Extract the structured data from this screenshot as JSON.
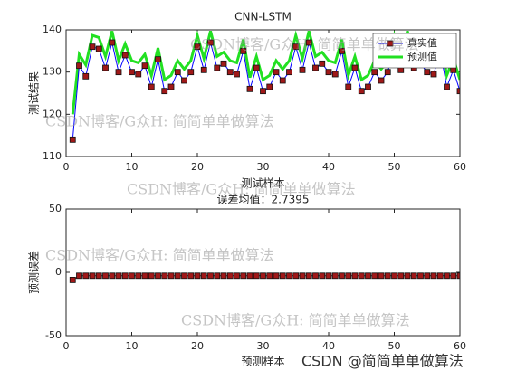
{
  "chart_data": [
    {
      "type": "line",
      "title": "CNN-LSTM",
      "xlabel": "测试样本",
      "ylabel": "测试结果",
      "x": [
        1,
        2,
        3,
        4,
        5,
        6,
        7,
        8,
        9,
        10,
        11,
        12,
        13,
        14,
        15,
        16,
        17,
        18,
        19,
        20,
        21,
        22,
        23,
        24,
        25,
        26,
        27,
        28,
        29,
        30,
        31,
        32,
        33,
        34,
        35,
        36,
        37,
        38,
        39,
        40,
        41,
        42,
        43,
        44,
        45,
        46,
        47,
        48,
        49,
        50,
        51,
        52,
        53,
        54,
        55,
        56,
        57,
        58,
        59,
        60
      ],
      "series": [
        {
          "name": "真实值",
          "color": "#0000ff",
          "marker": "square",
          "marker_color": "#a01818",
          "line_width": 1,
          "values": [
            114,
            131.5,
            129,
            136,
            135.5,
            131,
            137,
            130,
            134,
            130,
            129.5,
            131.5,
            126.5,
            133,
            125.5,
            126.5,
            130,
            128,
            130,
            136,
            130.5,
            137,
            131,
            132,
            130,
            129.5,
            135,
            126,
            131,
            125.5,
            126.5,
            130,
            128,
            130,
            136,
            130.5,
            137,
            131,
            132,
            130,
            129.5,
            135,
            126.5,
            131,
            125.5,
            126.5,
            130,
            128,
            130,
            136,
            130.5,
            137,
            131,
            132,
            130,
            129.5,
            135,
            126.5,
            130.5,
            125.5
          ]
        },
        {
          "name": "预测值",
          "color": "#22e022",
          "line_width": 3,
          "values": [
            120,
            134.2,
            131.7,
            138.7,
            138.2,
            133.7,
            139.7,
            132.7,
            136.7,
            132.7,
            132.2,
            134.2,
            129.2,
            135.7,
            128.2,
            129.2,
            132.7,
            130.7,
            132.7,
            138.7,
            133.2,
            139.7,
            133.7,
            134.7,
            132.7,
            132.2,
            137.7,
            128.7,
            133.7,
            128.2,
            129.2,
            132.7,
            130.7,
            132.7,
            138.7,
            133.2,
            139.7,
            133.7,
            134.7,
            132.7,
            132.2,
            137.7,
            129.2,
            133.7,
            128.2,
            129.2,
            132.7,
            130.7,
            132.7,
            138.7,
            133.2,
            139.7,
            133.7,
            134.7,
            132.7,
            132.2,
            137.7,
            129.2,
            133.2,
            128.2
          ]
        }
      ],
      "xlim": [
        0,
        60
      ],
      "xticks": [
        0,
        10,
        20,
        30,
        40,
        50,
        60
      ],
      "ylim": [
        110,
        140
      ],
      "yticks": [
        110,
        120,
        130,
        140
      ],
      "legend": "northeast"
    },
    {
      "type": "line",
      "title": "误差均值：2.7395",
      "xlabel": "预测样本",
      "ylabel": "预测误差",
      "x": [
        1,
        2,
        3,
        4,
        5,
        6,
        7,
        8,
        9,
        10,
        11,
        12,
        13,
        14,
        15,
        16,
        17,
        18,
        19,
        20,
        21,
        22,
        23,
        24,
        25,
        26,
        27,
        28,
        29,
        30,
        31,
        32,
        33,
        34,
        35,
        36,
        37,
        38,
        39,
        40,
        41,
        42,
        43,
        44,
        45,
        46,
        47,
        48,
        49,
        50,
        51,
        52,
        53,
        54,
        55,
        56,
        57,
        58,
        59,
        60
      ],
      "series": [
        {
          "color": "#5a1010",
          "marker": "square",
          "marker_color": "#a01818",
          "line_width": 1,
          "values": [
            -6,
            -2.7,
            -2.7,
            -2.7,
            -2.7,
            -2.7,
            -2.7,
            -2.7,
            -2.7,
            -2.7,
            -2.7,
            -2.7,
            -2.7,
            -2.7,
            -2.7,
            -2.7,
            -2.7,
            -2.7,
            -2.7,
            -2.7,
            -2.7,
            -2.7,
            -2.7,
            -2.7,
            -2.7,
            -2.7,
            -2.7,
            -2.7,
            -2.7,
            -2.7,
            -2.7,
            -2.7,
            -2.7,
            -2.7,
            -2.7,
            -2.7,
            -2.7,
            -2.7,
            -2.7,
            -2.7,
            -2.7,
            -2.7,
            -2.7,
            -2.7,
            -2.7,
            -2.7,
            -2.7,
            -2.7,
            -2.7,
            -2.7,
            -2.7,
            -2.7,
            -2.7,
            -2.7,
            -2.7,
            -2.7,
            -2.7,
            -2.7,
            -2.7,
            -2.7
          ]
        }
      ],
      "xlim": [
        0,
        60
      ],
      "xticks": [
        0,
        10,
        20,
        30,
        40,
        50,
        60
      ],
      "ylim": [
        -50,
        50
      ],
      "yticks": [
        -50,
        0,
        50
      ]
    }
  ],
  "watermarks": [
    "CSDN博客/G众H: 简简单单做算法",
    "CSDN博客/G众H: 简简单单做算法",
    "CSDN博客/G众H: 简简单单做算法",
    "CSDN博客/G众H: 简简单单做算法",
    "CSDN博客/G众H: 简简单单做算法",
    "CSDN @简简单单做算法"
  ]
}
